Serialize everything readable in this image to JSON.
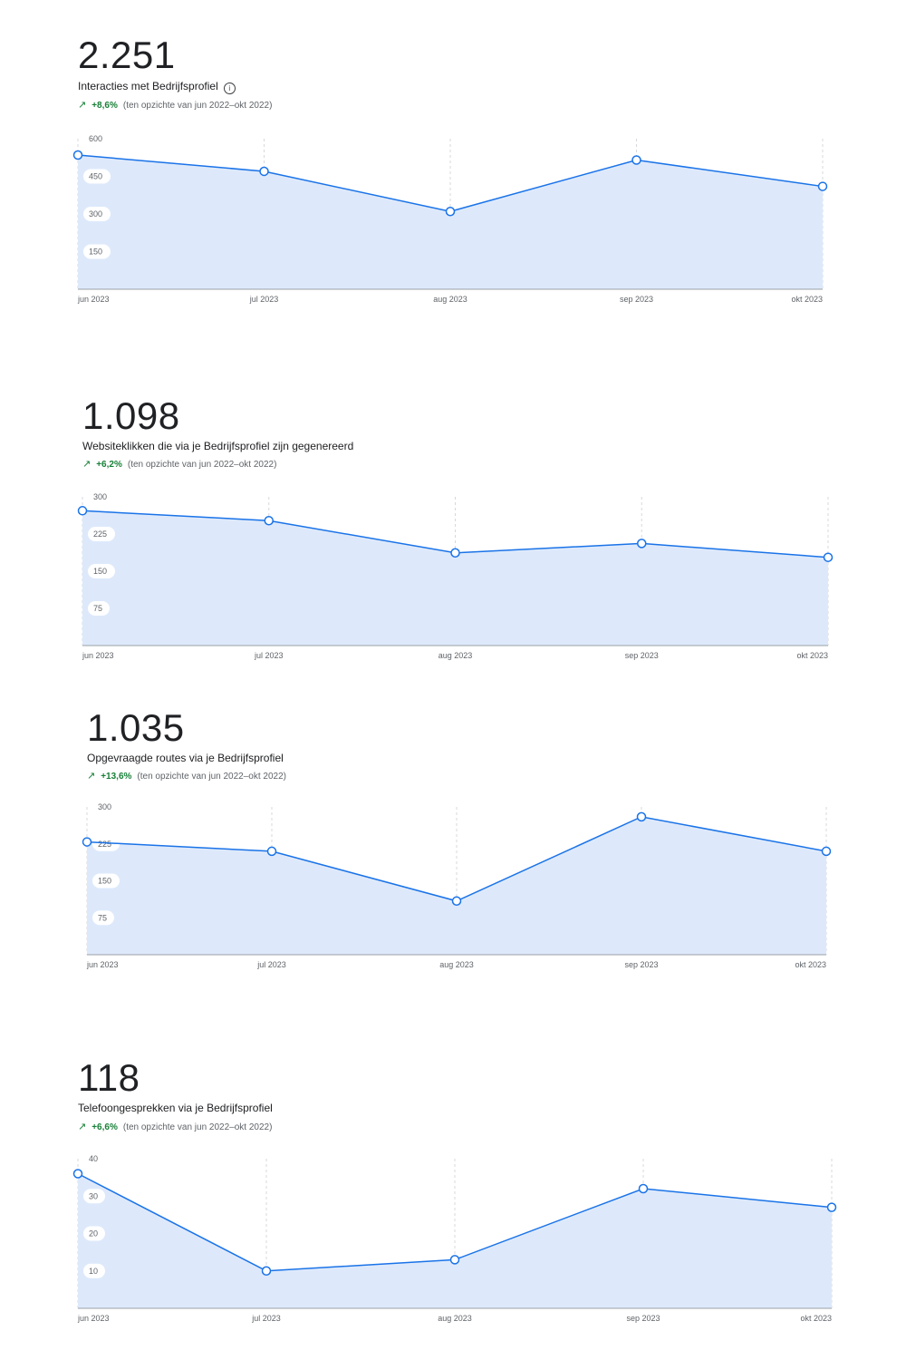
{
  "colors": {
    "line": "#1a73e8",
    "fill": "#dde9fb",
    "trend_up": "#188038",
    "grid": "#d5d8dc",
    "axis": "#9aa0a6"
  },
  "icons": {
    "info": "info-icon",
    "trend": "trending-up-icon"
  },
  "chart_data": [
    {
      "type": "area",
      "kpi_value": "2.251",
      "kpi_label": "Interacties met Bedrijfsprofiel",
      "has_info_icon": true,
      "trend_pct": "+8,6%",
      "trend_note": "(ten opzichte van jun 2022–okt 2022)",
      "categories": [
        "jun 2023",
        "jul 2023",
        "aug 2023",
        "sep 2023",
        "okt 2023"
      ],
      "values": [
        535,
        470,
        310,
        515,
        410
      ],
      "y_ticks": [
        "600",
        "450",
        "300",
        "150"
      ],
      "ylim": [
        0,
        600
      ],
      "grid": "vertical-dashed"
    },
    {
      "type": "area",
      "kpi_value": "1.098",
      "kpi_label": "Websiteklikken die via je Bedrijfsprofiel zijn gegenereerd",
      "has_info_icon": false,
      "trend_pct": "+6,2%",
      "trend_note": "(ten opzichte van jun 2022–okt 2022)",
      "categories": [
        "jun 2023",
        "jul 2023",
        "aug 2023",
        "sep 2023",
        "okt 2023"
      ],
      "values": [
        272,
        252,
        187,
        206,
        178
      ],
      "y_ticks": [
        "300",
        "225",
        "150",
        "75"
      ],
      "ylim": [
        0,
        300
      ],
      "grid": "vertical-dashed"
    },
    {
      "type": "area",
      "kpi_value": "1.035",
      "kpi_label": "Opgevraagde routes via je Bedrijfsprofiel",
      "has_info_icon": false,
      "trend_pct": "+13,6%",
      "trend_note": "(ten opzichte van jun 2022–okt 2022)",
      "categories": [
        "jun 2023",
        "jul 2023",
        "aug 2023",
        "sep 2023",
        "okt 2023"
      ],
      "values": [
        229,
        210,
        109,
        280,
        210
      ],
      "y_ticks": [
        "300",
        "225",
        "150",
        "75"
      ],
      "ylim": [
        0,
        300
      ],
      "grid": "vertical-dashed"
    },
    {
      "type": "area",
      "kpi_value": "118",
      "kpi_label": "Telefoongesprekken via je Bedrijfsprofiel",
      "has_info_icon": false,
      "trend_pct": "+6,6%",
      "trend_note": "(ten opzichte van jun 2022–okt 2022)",
      "categories": [
        "jun 2023",
        "jul 2023",
        "aug 2023",
        "sep 2023",
        "okt 2023"
      ],
      "values": [
        36,
        10,
        13,
        32,
        27
      ],
      "y_ticks": [
        "40",
        "30",
        "20",
        "10"
      ],
      "ylim": [
        0,
        40
      ],
      "grid": "vertical-dashed"
    }
  ]
}
